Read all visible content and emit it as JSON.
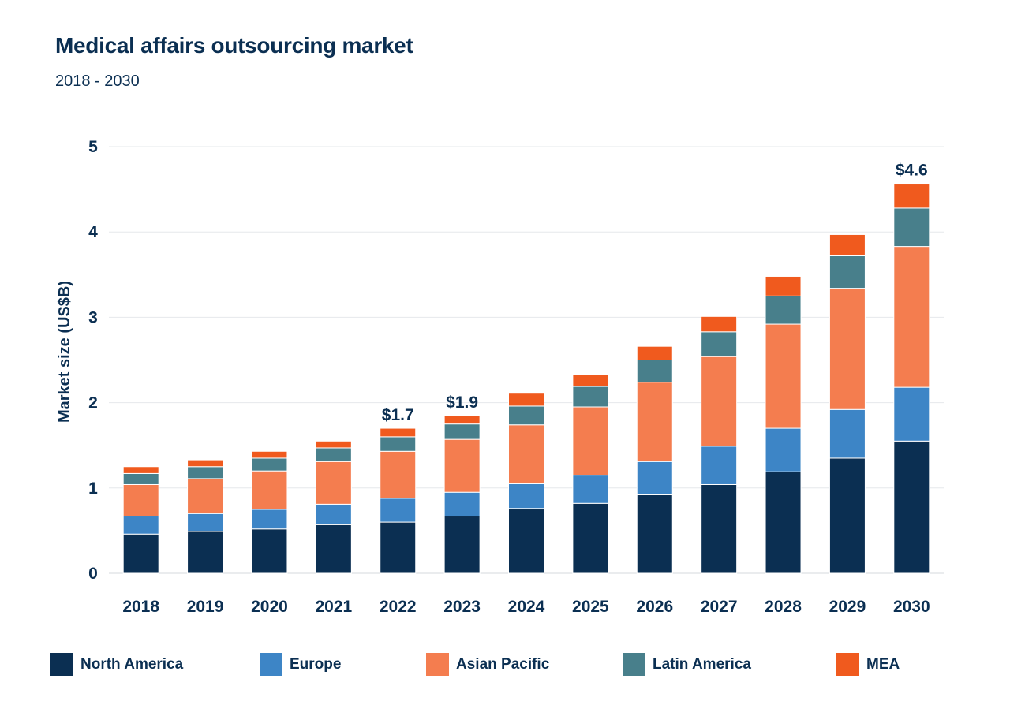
{
  "chart_data": {
    "type": "bar",
    "stacked": true,
    "title": "Medical affairs outsourcing market",
    "subtitle": "2018 - 2030",
    "xlabel": "",
    "ylabel": "Market size (US$B)",
    "ylim": [
      0,
      5
    ],
    "yticks": [
      "0",
      "1",
      "2",
      "3",
      "4",
      "5"
    ],
    "grid": true,
    "legend_position": "bottom",
    "categories": [
      "2018",
      "2019",
      "2020",
      "2021",
      "2022",
      "2023",
      "2024",
      "2025",
      "2026",
      "2027",
      "2028",
      "2029",
      "2030"
    ],
    "series": [
      {
        "name": "North America",
        "color": "#0b2f52",
        "values": [
          0.46,
          0.49,
          0.52,
          0.57,
          0.6,
          0.67,
          0.76,
          0.82,
          0.92,
          1.04,
          1.19,
          1.35,
          1.55
        ]
      },
      {
        "name": "Europe",
        "color": "#3d85c6",
        "values": [
          0.21,
          0.21,
          0.23,
          0.24,
          0.28,
          0.28,
          0.29,
          0.33,
          0.39,
          0.45,
          0.51,
          0.57,
          0.63
        ]
      },
      {
        "name": "Asian Pacific",
        "color": "#f47d4f",
        "values": [
          0.37,
          0.41,
          0.45,
          0.5,
          0.55,
          0.62,
          0.69,
          0.8,
          0.93,
          1.05,
          1.22,
          1.42,
          1.65
        ]
      },
      {
        "name": "Latin America",
        "color": "#487f8b",
        "values": [
          0.13,
          0.14,
          0.15,
          0.16,
          0.17,
          0.18,
          0.22,
          0.24,
          0.26,
          0.29,
          0.33,
          0.38,
          0.45
        ]
      },
      {
        "name": "MEA",
        "color": "#f05a1e",
        "values": [
          0.08,
          0.08,
          0.08,
          0.08,
          0.1,
          0.1,
          0.15,
          0.14,
          0.16,
          0.18,
          0.23,
          0.25,
          0.29
        ]
      }
    ],
    "annotations": [
      {
        "category": "2022",
        "text": "$1.7"
      },
      {
        "category": "2023",
        "text": "$1.9"
      },
      {
        "category": "2030",
        "text": "$4.6"
      }
    ]
  }
}
